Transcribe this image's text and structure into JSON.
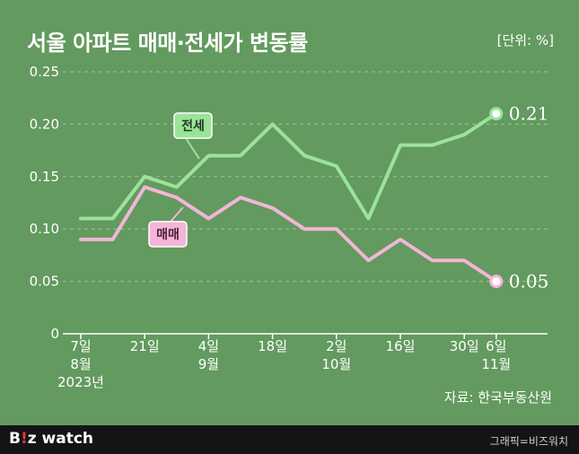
{
  "header": {
    "title": "서울 아파트 매매·전세가 변동률",
    "unit": "[단위: %]"
  },
  "source": "자료: 한국부동산원",
  "footer": {
    "logo_b": "B",
    "logo_i": "!",
    "logo_rest": "z watch",
    "credit": "그래픽=비즈워치"
  },
  "colors": {
    "background": "#639a5f",
    "jeonse": "#9be39a",
    "maemae": "#f4b5d8",
    "label_jeonse_text": "#1f3a1f",
    "label_maemae_text": "#4a1f3a"
  },
  "chart_data": {
    "type": "line",
    "ylim": [
      0,
      0.25
    ],
    "y_ticks": [
      "0",
      "0.05",
      "0.10",
      "0.15",
      "0.20",
      "0.25"
    ],
    "x_tick_labels": [
      {
        "index": 0,
        "lines": [
          "7일",
          "8월",
          "2023년"
        ]
      },
      {
        "index": 2,
        "lines": [
          "21일"
        ]
      },
      {
        "index": 4,
        "lines": [
          "4일",
          "9월"
        ]
      },
      {
        "index": 6,
        "lines": [
          "18일"
        ]
      },
      {
        "index": 8,
        "lines": [
          "2일",
          "10월"
        ]
      },
      {
        "index": 10,
        "lines": [
          "16일"
        ]
      },
      {
        "index": 12,
        "lines": [
          "30일"
        ]
      },
      {
        "index": 13,
        "lines": [
          "6일",
          "11월"
        ]
      }
    ],
    "series": [
      {
        "name": "전세",
        "values": [
          0.11,
          0.11,
          0.15,
          0.14,
          0.17,
          0.17,
          0.2,
          0.17,
          0.16,
          0.11,
          0.18,
          0.18,
          0.19,
          0.21
        ],
        "end_label": "0.21"
      },
      {
        "name": "매매",
        "values": [
          0.09,
          0.09,
          0.14,
          0.13,
          0.11,
          0.13,
          0.12,
          0.1,
          0.1,
          0.07,
          0.09,
          0.07,
          0.07,
          0.05
        ],
        "end_label": "0.05"
      }
    ],
    "grid": true
  }
}
